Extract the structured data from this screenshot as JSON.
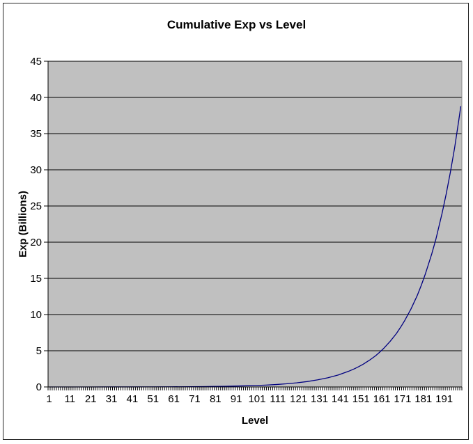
{
  "frame": {
    "background": "#ffffff",
    "border_color": "#262626"
  },
  "chart_data": {
    "type": "line",
    "title": "Cumulative Exp vs Level",
    "xlabel": "Level",
    "ylabel": "Exp (Billions)",
    "x_tick_labels": [
      1,
      11,
      21,
      31,
      41,
      51,
      61,
      71,
      81,
      91,
      101,
      111,
      121,
      131,
      141,
      151,
      161,
      171,
      181,
      191
    ],
    "y_tick_values": [
      0,
      5,
      10,
      15,
      20,
      25,
      30,
      35,
      40,
      45
    ],
    "ylim": [
      0,
      45
    ],
    "x_categories_range": [
      1,
      199
    ],
    "grid": true,
    "legend": "none",
    "plot_bg_color": "#c0c0c0",
    "gridline_color": "#000000",
    "axis_color": "#000000",
    "plot_right_border_color": "#8c8c8c",
    "series": [
      {
        "name": "Cumulative Exp",
        "color": "#000080",
        "points": [
          [
            1,
            0.001
          ],
          [
            10,
            0.002
          ],
          [
            20,
            0.003
          ],
          [
            30,
            0.005
          ],
          [
            40,
            0.008
          ],
          [
            50,
            0.013
          ],
          [
            60,
            0.023
          ],
          [
            70,
            0.039
          ],
          [
            75,
            0.051
          ],
          [
            80,
            0.066
          ],
          [
            85,
            0.087
          ],
          [
            90,
            0.113
          ],
          [
            95,
            0.148
          ],
          [
            100,
            0.194
          ],
          [
            105,
            0.253
          ],
          [
            110,
            0.331
          ],
          [
            115,
            0.432
          ],
          [
            120,
            0.566
          ],
          [
            125,
            0.74
          ],
          [
            130,
            0.97
          ],
          [
            135,
            1.26
          ],
          [
            140,
            1.65
          ],
          [
            145,
            2.16
          ],
          [
            148,
            2.53
          ],
          [
            150,
            2.82
          ],
          [
            152,
            3.13
          ],
          [
            155,
            3.68
          ],
          [
            158,
            4.3
          ],
          [
            160,
            4.81
          ],
          [
            162,
            5.35
          ],
          [
            165,
            6.29
          ],
          [
            168,
            7.37
          ],
          [
            170,
            8.23
          ],
          [
            172,
            9.16
          ],
          [
            175,
            10.75
          ],
          [
            178,
            12.6
          ],
          [
            180,
            14.05
          ],
          [
            182,
            15.65
          ],
          [
            185,
            18.36
          ],
          [
            187,
            20.4
          ],
          [
            190,
            24.0
          ],
          [
            192,
            26.7
          ],
          [
            194,
            29.7
          ],
          [
            196,
            33.0
          ],
          [
            197,
            34.9
          ],
          [
            198,
            36.8
          ],
          [
            199,
            38.8
          ]
        ]
      }
    ]
  }
}
